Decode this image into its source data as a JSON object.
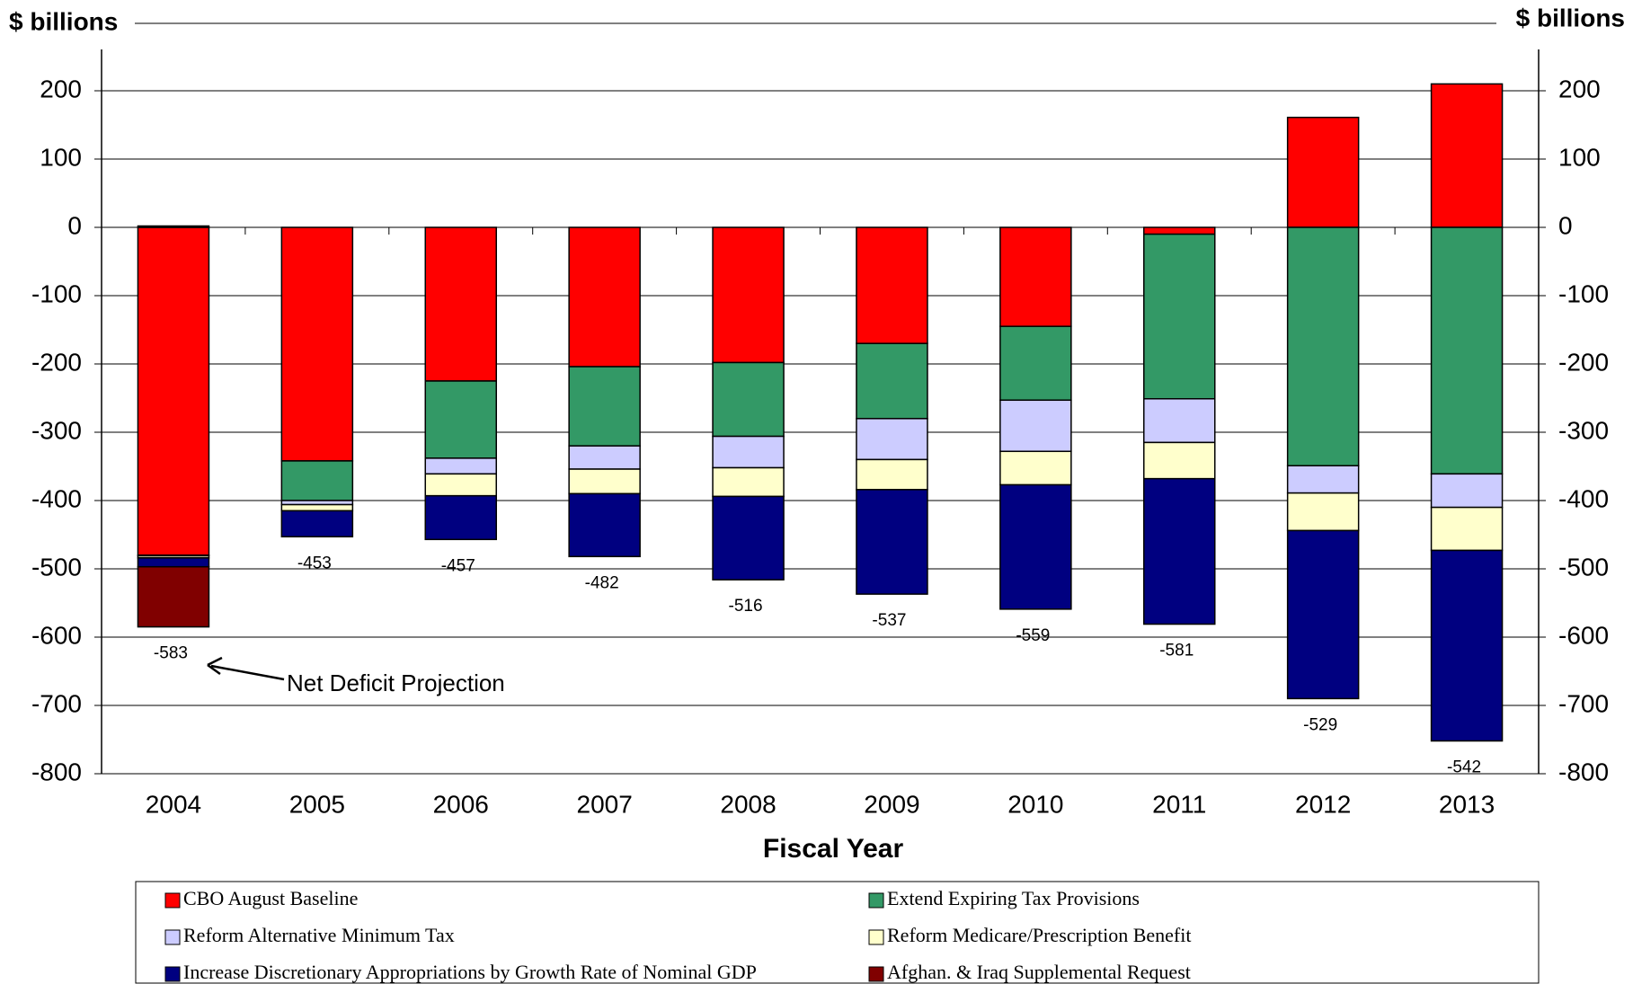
{
  "chart_data": {
    "type": "stacked_bar",
    "y_axis_label": "$ billions",
    "x_axis_label": "Fiscal Year",
    "categories": [
      "2004",
      "2005",
      "2006",
      "2007",
      "2008",
      "2009",
      "2010",
      "2011",
      "2012",
      "2013"
    ],
    "series": [
      {
        "name": "CBO August Baseline",
        "color": "#ff0000",
        "values": [
          -480,
          -342,
          -225,
          -204,
          -198,
          -170,
          -145,
          -10,
          161,
          210
        ]
      },
      {
        "name": "Extend Expiring Tax Provisions",
        "color": "#339966",
        "values": [
          2,
          -58,
          -113,
          -116,
          -108,
          -110,
          -108,
          -241,
          -349,
          -361
        ]
      },
      {
        "name": "Reform Alternative Minimum Tax",
        "color": "#ccccff",
        "values": [
          -1,
          -6,
          -23,
          -34,
          -46,
          -60,
          -75,
          -64,
          -40,
          -49
        ]
      },
      {
        "name": "Reform Medicare/Prescription Benefit",
        "color": "#ffffcc",
        "values": [
          -3,
          -9,
          -32,
          -36,
          -42,
          -44,
          -49,
          -53,
          -55,
          -63
        ]
      },
      {
        "name": "Increase Discretionary Appropriations by Growth Rate of Nominal GDP",
        "color": "#000080",
        "values": [
          -13,
          -38,
          -64,
          -92,
          -122,
          -153,
          -182,
          -213,
          -246,
          -279
        ]
      },
      {
        "name": "Afghan. & Iraq Supplemental Request",
        "color": "#800000",
        "values": [
          -88,
          0,
          0,
          0,
          0,
          0,
          0,
          0,
          0,
          0
        ]
      }
    ],
    "totals": [
      -583,
      -453,
      -457,
      -482,
      -516,
      -537,
      -559,
      -581,
      -529,
      -542
    ],
    "annotation": "Net Deficit Projection",
    "ylim": [
      -800,
      200
    ],
    "yticks": [
      -800,
      -700,
      -600,
      -500,
      -400,
      -300,
      -200,
      -100,
      0,
      100,
      200
    ],
    "grid": true
  }
}
